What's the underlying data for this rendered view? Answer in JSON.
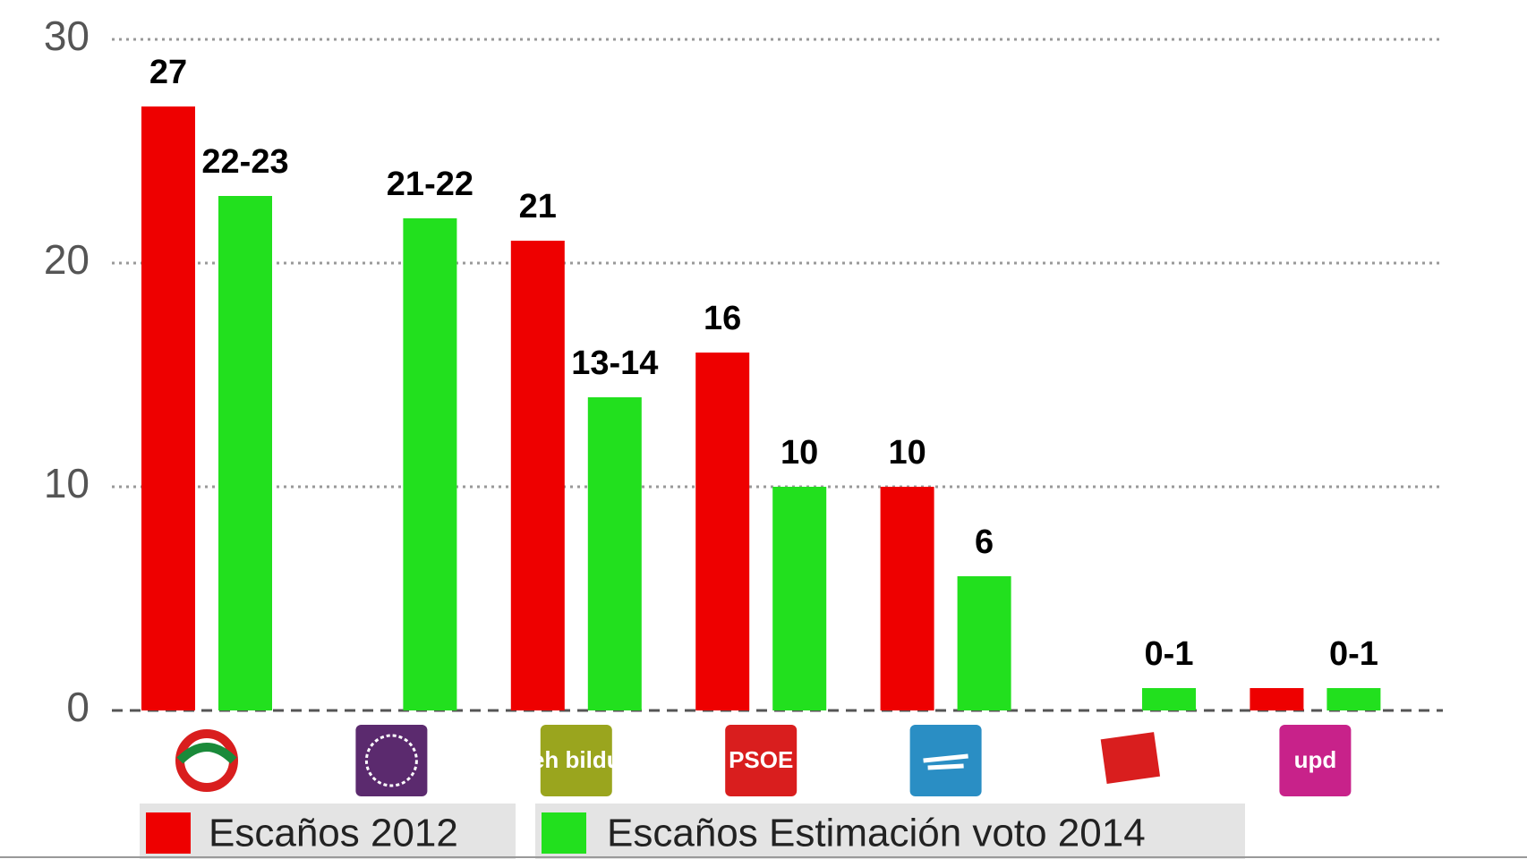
{
  "chart_data": {
    "type": "bar",
    "categories": [
      null,
      null,
      "eh bildu",
      "PSOE",
      null,
      null,
      "upd"
    ],
    "series": [
      {
        "name": "Escaños 2012",
        "color": "#ee0000",
        "values": [
          27,
          null,
          21,
          16,
          10,
          null,
          1
        ],
        "value_labels": [
          "27",
          null,
          "21",
          "16",
          "10",
          null,
          null
        ]
      },
      {
        "name": "Escaños Estimación voto 2014",
        "color": "#22e01e",
        "values": [
          23,
          22,
          14,
          10,
          6,
          1,
          1
        ],
        "value_labels": [
          "22-23",
          "21-22",
          "13-14",
          "10",
          "6",
          "0-1",
          "0-1"
        ]
      }
    ],
    "ylim": [
      0,
      30
    ],
    "yticks": [
      0,
      10,
      20,
      30
    ],
    "grid": true
  }
}
